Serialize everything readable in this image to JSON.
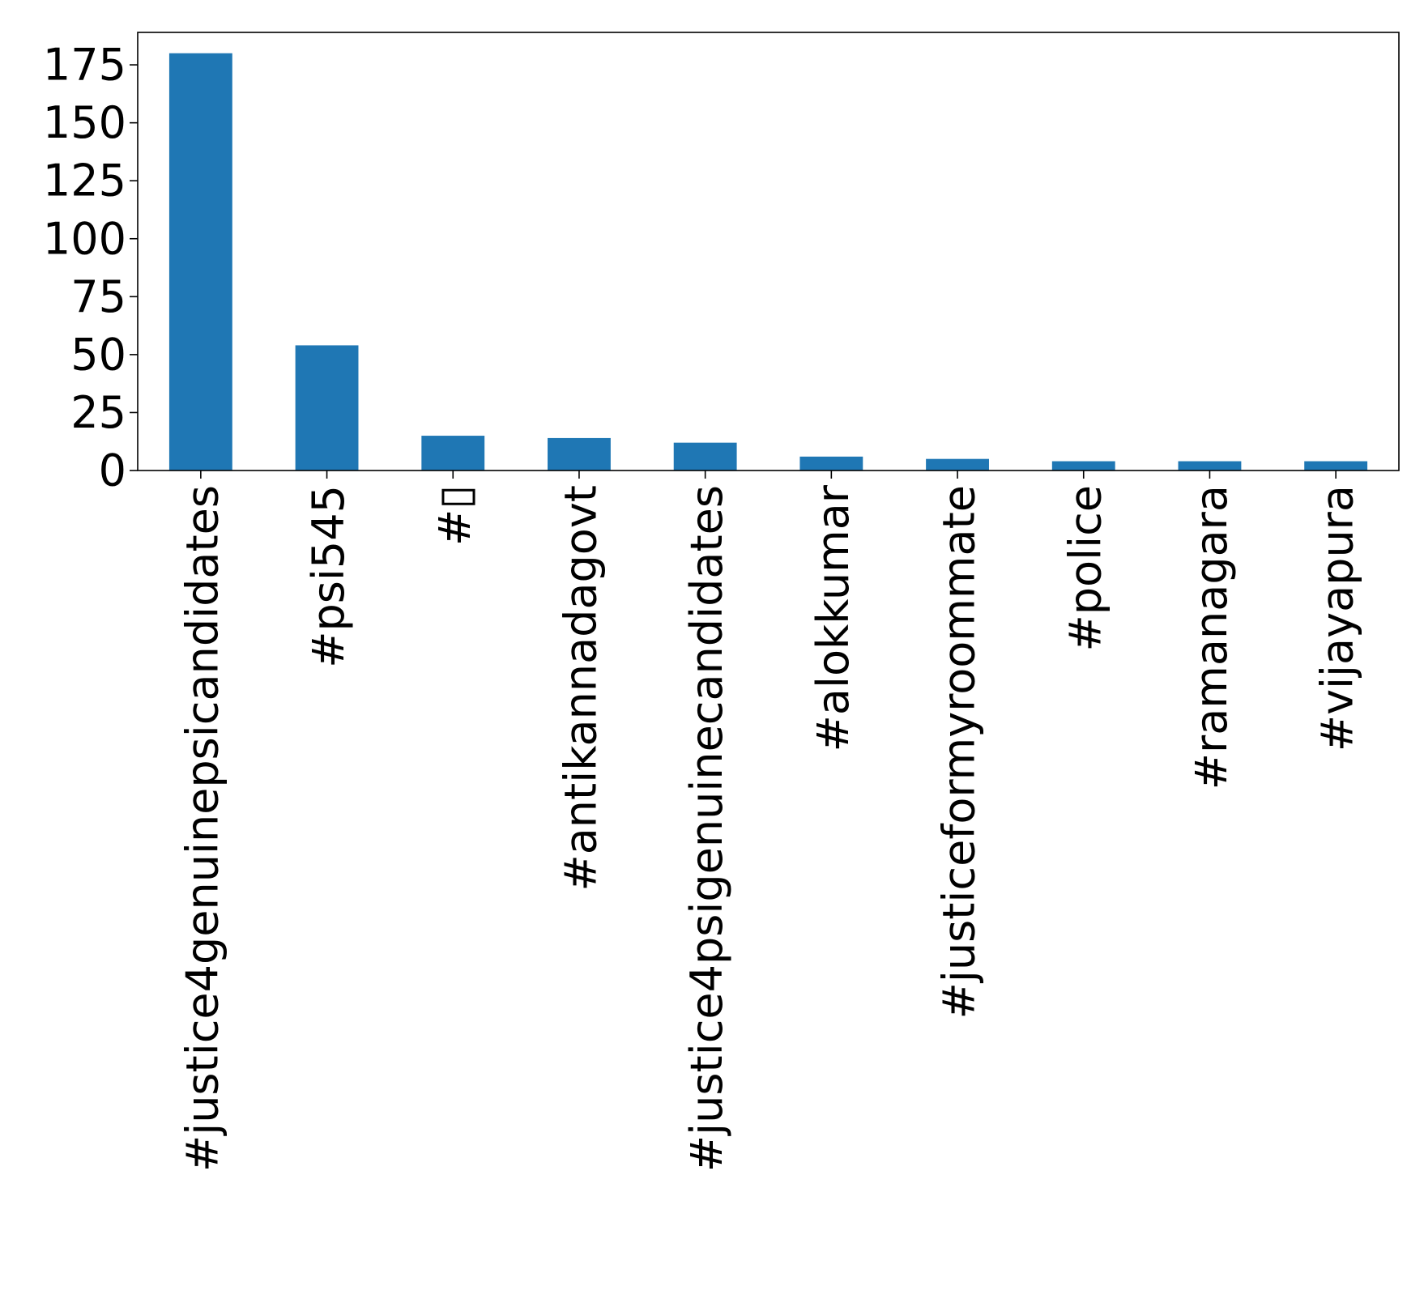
{
  "chart_data": {
    "type": "bar",
    "title": "",
    "xlabel": "",
    "ylabel": "",
    "categories": [
      "#justice4genuinepsicandidates",
      "#psi545",
      "#▯",
      "#antikannadagovt",
      "#justice4psigenuinecandidates",
      "#alokkumar",
      "#justiceformyroommate",
      "#police",
      "#ramanagara",
      "#vijayapura"
    ],
    "values": [
      180,
      54,
      15,
      14,
      12,
      6,
      5,
      4,
      4,
      4
    ],
    "ylim": [
      0,
      189
    ],
    "yticks": [
      0,
      25,
      50,
      75,
      100,
      125,
      150,
      175
    ],
    "bar_color": "#1f77b4",
    "grid": false,
    "legend": "none"
  }
}
